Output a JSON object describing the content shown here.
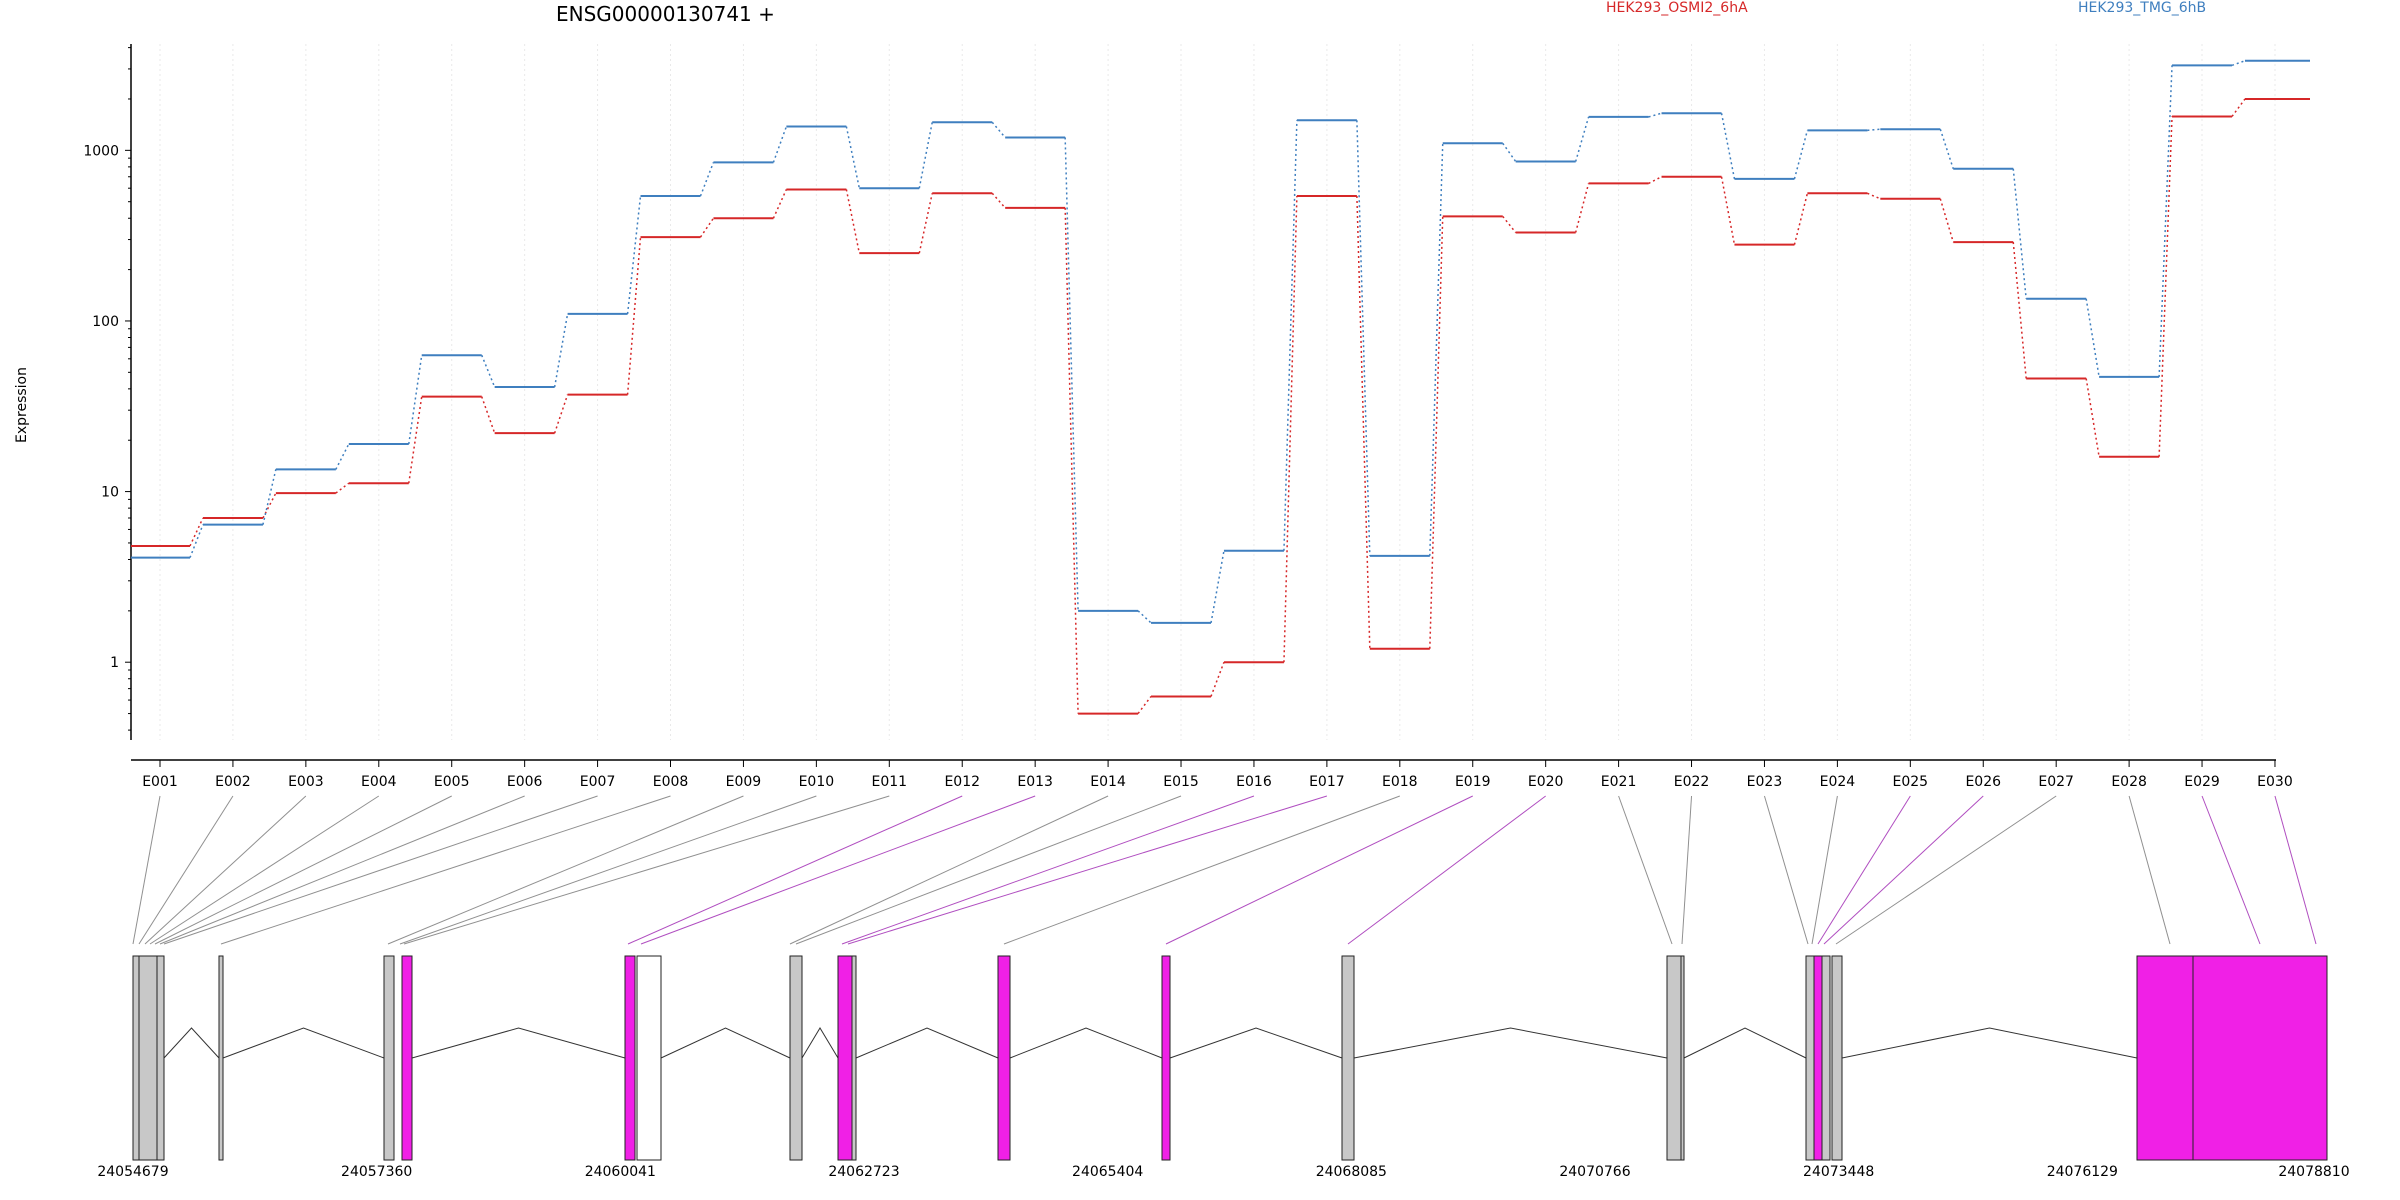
{
  "chart_data": {
    "type": "line",
    "title": "ENSG00000130741 +",
    "ylabel": "Expression",
    "xlabel": "",
    "yscale": "log",
    "ylim": [
      0.35,
      4200
    ],
    "yticks": [
      "1",
      "10",
      "100",
      "1000"
    ],
    "categories": [
      "E001",
      "E002",
      "E003",
      "E004",
      "E005",
      "E006",
      "E007",
      "E008",
      "E009",
      "E010",
      "E011",
      "E012",
      "E013",
      "E014",
      "E015",
      "E016",
      "E017",
      "E018",
      "E019",
      "E020",
      "E021",
      "E022",
      "E023",
      "E024",
      "E025",
      "E026",
      "E027",
      "E028",
      "E029",
      "E030"
    ],
    "series": [
      {
        "name": "HEK293_OSMI2_6hA",
        "color": "#d62728",
        "values": [
          4.8,
          7.0,
          9.8,
          11.2,
          36,
          22,
          37,
          310,
          400,
          590,
          250,
          560,
          460,
          0.5,
          0.63,
          1.0,
          540,
          1.2,
          410,
          330,
          640,
          700,
          280,
          560,
          520,
          290,
          46,
          16,
          1580,
          2000
        ]
      },
      {
        "name": "HEK293_TMG_6hB",
        "color": "#3f7fbf",
        "values": [
          4.1,
          6.4,
          13.5,
          19,
          63,
          41,
          110,
          540,
          850,
          1380,
          600,
          1460,
          1190,
          2.0,
          1.7,
          4.5,
          1500,
          4.2,
          1100,
          860,
          1570,
          1650,
          680,
          1310,
          1330,
          780,
          135,
          47,
          3150,
          3350
        ]
      }
    ],
    "grid": "vertical-dotted",
    "legend": "top"
  },
  "gene_model": {
    "coordinate_labels": [
      "24054679",
      "24057360",
      "24060041",
      "24062723",
      "24065404",
      "24068085",
      "24070766",
      "24073448",
      "24076129",
      "24078810"
    ],
    "exon_colors": {
      "default": "#c8c8c8",
      "highlighted": "#f020e6",
      "empty": "#ffffff"
    },
    "exon_highlight": [
      false,
      false,
      false,
      false,
      false,
      false,
      false,
      false,
      false,
      false,
      false,
      true,
      true,
      false,
      false,
      true,
      true,
      false,
      true,
      true,
      false,
      false,
      false,
      false,
      true,
      true,
      false,
      false,
      true,
      true
    ]
  }
}
